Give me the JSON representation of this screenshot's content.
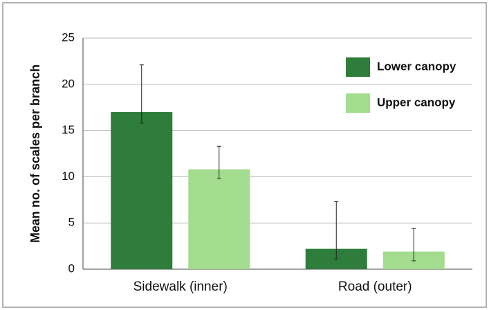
{
  "chart_data": {
    "type": "bar",
    "y_label": "Mean no. of scales per branch",
    "categories": [
      "Sidewalk (inner)",
      "Road (outer)"
    ],
    "series": [
      {
        "name": "Lower canopy",
        "color": "#2e7d3a",
        "values": [
          17,
          2.2
        ],
        "errors": [
          [
            1.2,
            5.1
          ],
          [
            1.1,
            5.1
          ]
        ]
      },
      {
        "name": "Upper canopy",
        "color": "#a3dc8f",
        "values": [
          10.8,
          1.9
        ],
        "errors": [
          [
            1.0,
            2.5
          ],
          [
            1.0,
            2.5
          ]
        ]
      }
    ],
    "ylim": [
      0,
      25
    ],
    "yticks": [
      0,
      5,
      10,
      15,
      20,
      25
    ],
    "grid": true,
    "legend": "upper right"
  }
}
